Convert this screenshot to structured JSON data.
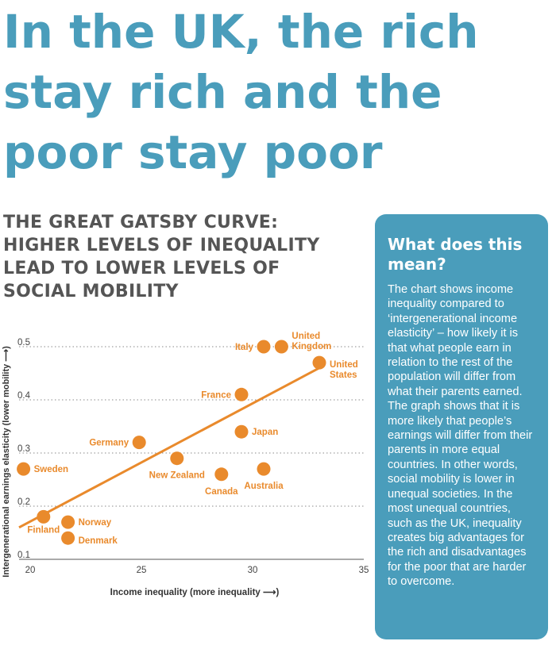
{
  "headline": "In the UK, the rich stay rich and the poor stay poor",
  "subtitle": "THE GREAT GATSBY CURVE: HIGHER LEVELS OF INEQUALITY LEAD TO LOWER LEVELS OF SOCIAL MOBILITY",
  "sidebar": {
    "title": "What does this mean?",
    "body": "The chart shows income inequality compared to ‘intergenerational income elasticity’ – how likely it is that what people earn in relation to the rest of the population will differ from what their parents earned. The graph shows that it is more likely that people’s earnings will differ from their parents in more equal countries. In other words, social mobility is lower in unequal societies. In the most unequal countries, such as the UK, inequality creates big advantages for the rich and disadvantages for the poor that are harder to overcome."
  },
  "colors": {
    "headline": "#4a9dbb",
    "accent_orange": "#e98a2c",
    "panel": "#4a9dbb",
    "subtitle": "#555555"
  },
  "chart_data": {
    "type": "scatter",
    "xlabel": "Income inequality (more inequality ⟶)",
    "ylabel": "Intergenerational earnings elasticity (lower mobility ⟶)",
    "xlim": [
      19.5,
      35
    ],
    "ylim": [
      0.1,
      0.5
    ],
    "x_ticks": [
      "20",
      "25",
      "30",
      "35"
    ],
    "y_ticks": [
      "0.1",
      "0.2",
      "0.3",
      "0.4",
      "0.5"
    ],
    "grid": "horizontal dotted",
    "points": [
      {
        "label": "Sweden",
        "x": 19.7,
        "y": 0.27
      },
      {
        "label": "Finland",
        "x": 20.6,
        "y": 0.18
      },
      {
        "label": "Norway",
        "x": 21.7,
        "y": 0.17
      },
      {
        "label": "Denmark",
        "x": 21.7,
        "y": 0.14
      },
      {
        "label": "Germany",
        "x": 24.9,
        "y": 0.32
      },
      {
        "label": "New Zealand",
        "x": 26.6,
        "y": 0.29
      },
      {
        "label": "Canada",
        "x": 28.6,
        "y": 0.26
      },
      {
        "label": "France",
        "x": 29.5,
        "y": 0.41
      },
      {
        "label": "Japan",
        "x": 29.5,
        "y": 0.34
      },
      {
        "label": "Australia",
        "x": 30.5,
        "y": 0.27
      },
      {
        "label": "Italy",
        "x": 30.5,
        "y": 0.5
      },
      {
        "label": "United Kingdom",
        "x": 31.3,
        "y": 0.5
      },
      {
        "label": "United States",
        "x": 33.0,
        "y": 0.47
      }
    ],
    "trendline": {
      "x1": 19.5,
      "y1": 0.16,
      "x2": 33.0,
      "y2": 0.46
    }
  }
}
